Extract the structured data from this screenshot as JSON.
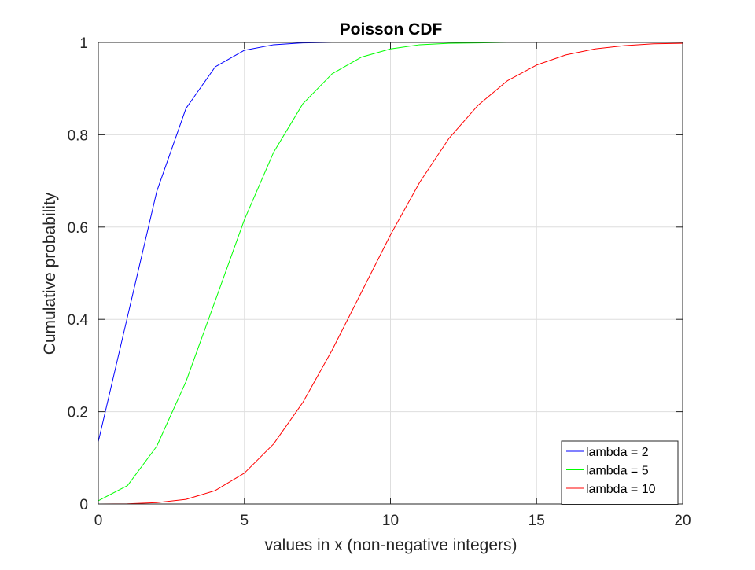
{
  "chart_data": {
    "type": "line",
    "title": "Poisson CDF",
    "xlabel": "values in x (non-negative integers)",
    "ylabel": "Cumulative probability",
    "xlim": [
      0,
      20
    ],
    "ylim": [
      0,
      1
    ],
    "xticks": [
      0,
      5,
      10,
      15,
      20
    ],
    "yticks": [
      0,
      0.2,
      0.4,
      0.6,
      0.8,
      1
    ],
    "xtick_labels": [
      "0",
      "5",
      "10",
      "15",
      "20"
    ],
    "ytick_labels": [
      "0",
      "0.2",
      "0.4",
      "0.6",
      "0.8",
      "1"
    ],
    "grid": true,
    "legend_position": "bottom-right",
    "series": [
      {
        "name": "lambda = 2",
        "color": "#0000ff",
        "x": [
          0,
          1,
          2,
          3,
          4,
          5,
          6,
          7,
          8,
          9,
          10,
          11,
          12
        ],
        "y": [
          0.135,
          0.406,
          0.677,
          0.857,
          0.947,
          0.983,
          0.995,
          0.999,
          1.0,
          1.0,
          1.0,
          1.0,
          1.0
        ]
      },
      {
        "name": "lambda = 5",
        "color": "#00ff00",
        "x": [
          0,
          1,
          2,
          3,
          4,
          5,
          6,
          7,
          8,
          9,
          10,
          11,
          12,
          13,
          14,
          15,
          16,
          17,
          18,
          19,
          20
        ],
        "y": [
          0.007,
          0.04,
          0.125,
          0.265,
          0.44,
          0.616,
          0.762,
          0.867,
          0.932,
          0.968,
          0.986,
          0.995,
          0.998,
          0.999,
          1.0,
          1.0,
          1.0,
          1.0,
          1.0,
          1.0,
          1.0
        ]
      },
      {
        "name": "lambda = 10",
        "color": "#ff0000",
        "x": [
          0,
          1,
          2,
          3,
          4,
          5,
          6,
          7,
          8,
          9,
          10,
          11,
          12,
          13,
          14,
          15,
          16,
          17,
          18,
          19,
          20
        ],
        "y": [
          0.0,
          0.0005,
          0.003,
          0.01,
          0.029,
          0.067,
          0.13,
          0.22,
          0.333,
          0.458,
          0.583,
          0.697,
          0.792,
          0.864,
          0.917,
          0.951,
          0.973,
          0.986,
          0.993,
          0.997,
          0.998
        ]
      }
    ]
  },
  "colors": {
    "axis": "#262626",
    "grid": "#dedede",
    "legend_border": "#262626"
  }
}
